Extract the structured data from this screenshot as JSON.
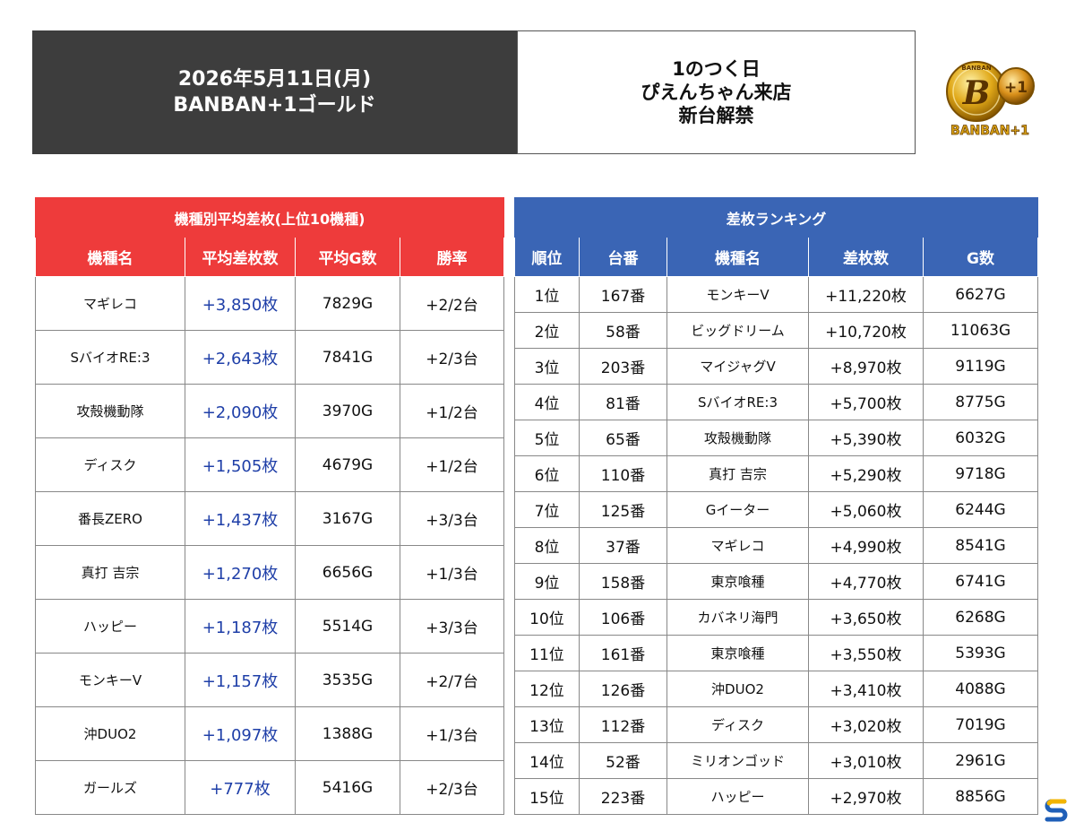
{
  "header": {
    "date_line": "2026年5月11日(月)",
    "store_line": "BANBAN+1ゴールド",
    "event_lines": [
      "1のつく日",
      "ぴえんちゃん来店",
      "新台解禁"
    ]
  },
  "logo": {
    "icon": "banban-plus1-coin-logo",
    "text": "BANBAN+1",
    "plus_text": "+1",
    "top_text": "BANBAN"
  },
  "colors": {
    "red_header": "#ee3b3b",
    "blue_header": "#3a65b5",
    "avg_value": "#1f3fa8",
    "dark_banner": "#3d3d3d"
  },
  "model_avg": {
    "title": "機種別平均差枚(上位10機種)",
    "columns": [
      "機種名",
      "平均差枚数",
      "平均G数",
      "勝率"
    ],
    "rows": [
      {
        "name": "マギレコ",
        "avg": "+3,850枚",
        "games": "7829G",
        "win": "+2/2台"
      },
      {
        "name": "SバイオRE:3",
        "avg": "+2,643枚",
        "games": "7841G",
        "win": "+2/3台"
      },
      {
        "name": "攻殻機動隊",
        "avg": "+2,090枚",
        "games": "3970G",
        "win": "+1/2台"
      },
      {
        "name": "ディスク",
        "avg": "+1,505枚",
        "games": "4679G",
        "win": "+1/2台"
      },
      {
        "name": "番長ZERO",
        "avg": "+1,437枚",
        "games": "3167G",
        "win": "+3/3台"
      },
      {
        "name": "真打 吉宗",
        "avg": "+1,270枚",
        "games": "6656G",
        "win": "+1/3台"
      },
      {
        "name": "ハッピー",
        "avg": "+1,187枚",
        "games": "5514G",
        "win": "+3/3台"
      },
      {
        "name": "モンキーV",
        "avg": "+1,157枚",
        "games": "3535G",
        "win": "+2/7台"
      },
      {
        "name": "沖DUO2",
        "avg": "+1,097枚",
        "games": "1388G",
        "win": "+1/3台"
      },
      {
        "name": "ガールズ",
        "avg": "+777枚",
        "games": "5416G",
        "win": "+2/3台"
      }
    ]
  },
  "ranking": {
    "title": "差枚ランキング",
    "columns": [
      "順位",
      "台番",
      "機種名",
      "差枚数",
      "G数"
    ],
    "rows": [
      {
        "rank": "1位",
        "machine_no": "167番",
        "name": "モンキーV",
        "diff": "+11,220枚",
        "games": "6627G"
      },
      {
        "rank": "2位",
        "machine_no": "58番",
        "name": "ビッグドリーム",
        "diff": "+10,720枚",
        "games": "11063G"
      },
      {
        "rank": "3位",
        "machine_no": "203番",
        "name": "マイジャグV",
        "diff": "+8,970枚",
        "games": "9119G"
      },
      {
        "rank": "4位",
        "machine_no": "81番",
        "name": "SバイオRE:3",
        "diff": "+5,700枚",
        "games": "8775G"
      },
      {
        "rank": "5位",
        "machine_no": "65番",
        "name": "攻殻機動隊",
        "diff": "+5,390枚",
        "games": "6032G"
      },
      {
        "rank": "6位",
        "machine_no": "110番",
        "name": "真打 吉宗",
        "diff": "+5,290枚",
        "games": "9718G"
      },
      {
        "rank": "7位",
        "machine_no": "125番",
        "name": "Gイーター",
        "diff": "+5,060枚",
        "games": "6244G"
      },
      {
        "rank": "8位",
        "machine_no": "37番",
        "name": "マギレコ",
        "diff": "+4,990枚",
        "games": "8541G"
      },
      {
        "rank": "9位",
        "machine_no": "158番",
        "name": "東京喰種",
        "diff": "+4,770枚",
        "games": "6741G"
      },
      {
        "rank": "10位",
        "machine_no": "106番",
        "name": "カバネリ海門",
        "diff": "+3,650枚",
        "games": "6268G"
      },
      {
        "rank": "11位",
        "machine_no": "161番",
        "name": "東京喰種",
        "diff": "+3,550枚",
        "games": "5393G"
      },
      {
        "rank": "12位",
        "machine_no": "126番",
        "name": "沖DUO2",
        "diff": "+3,410枚",
        "games": "4088G"
      },
      {
        "rank": "13位",
        "machine_no": "112番",
        "name": "ディスク",
        "diff": "+3,020枚",
        "games": "7019G"
      },
      {
        "rank": "14位",
        "machine_no": "52番",
        "name": "ミリオンゴッド",
        "diff": "+3,010枚",
        "games": "2961G"
      },
      {
        "rank": "15位",
        "machine_no": "223番",
        "name": "ハッピー",
        "diff": "+2,970枚",
        "games": "8856G"
      }
    ]
  },
  "corner_badge": {
    "icon": "s-logo-icon"
  }
}
